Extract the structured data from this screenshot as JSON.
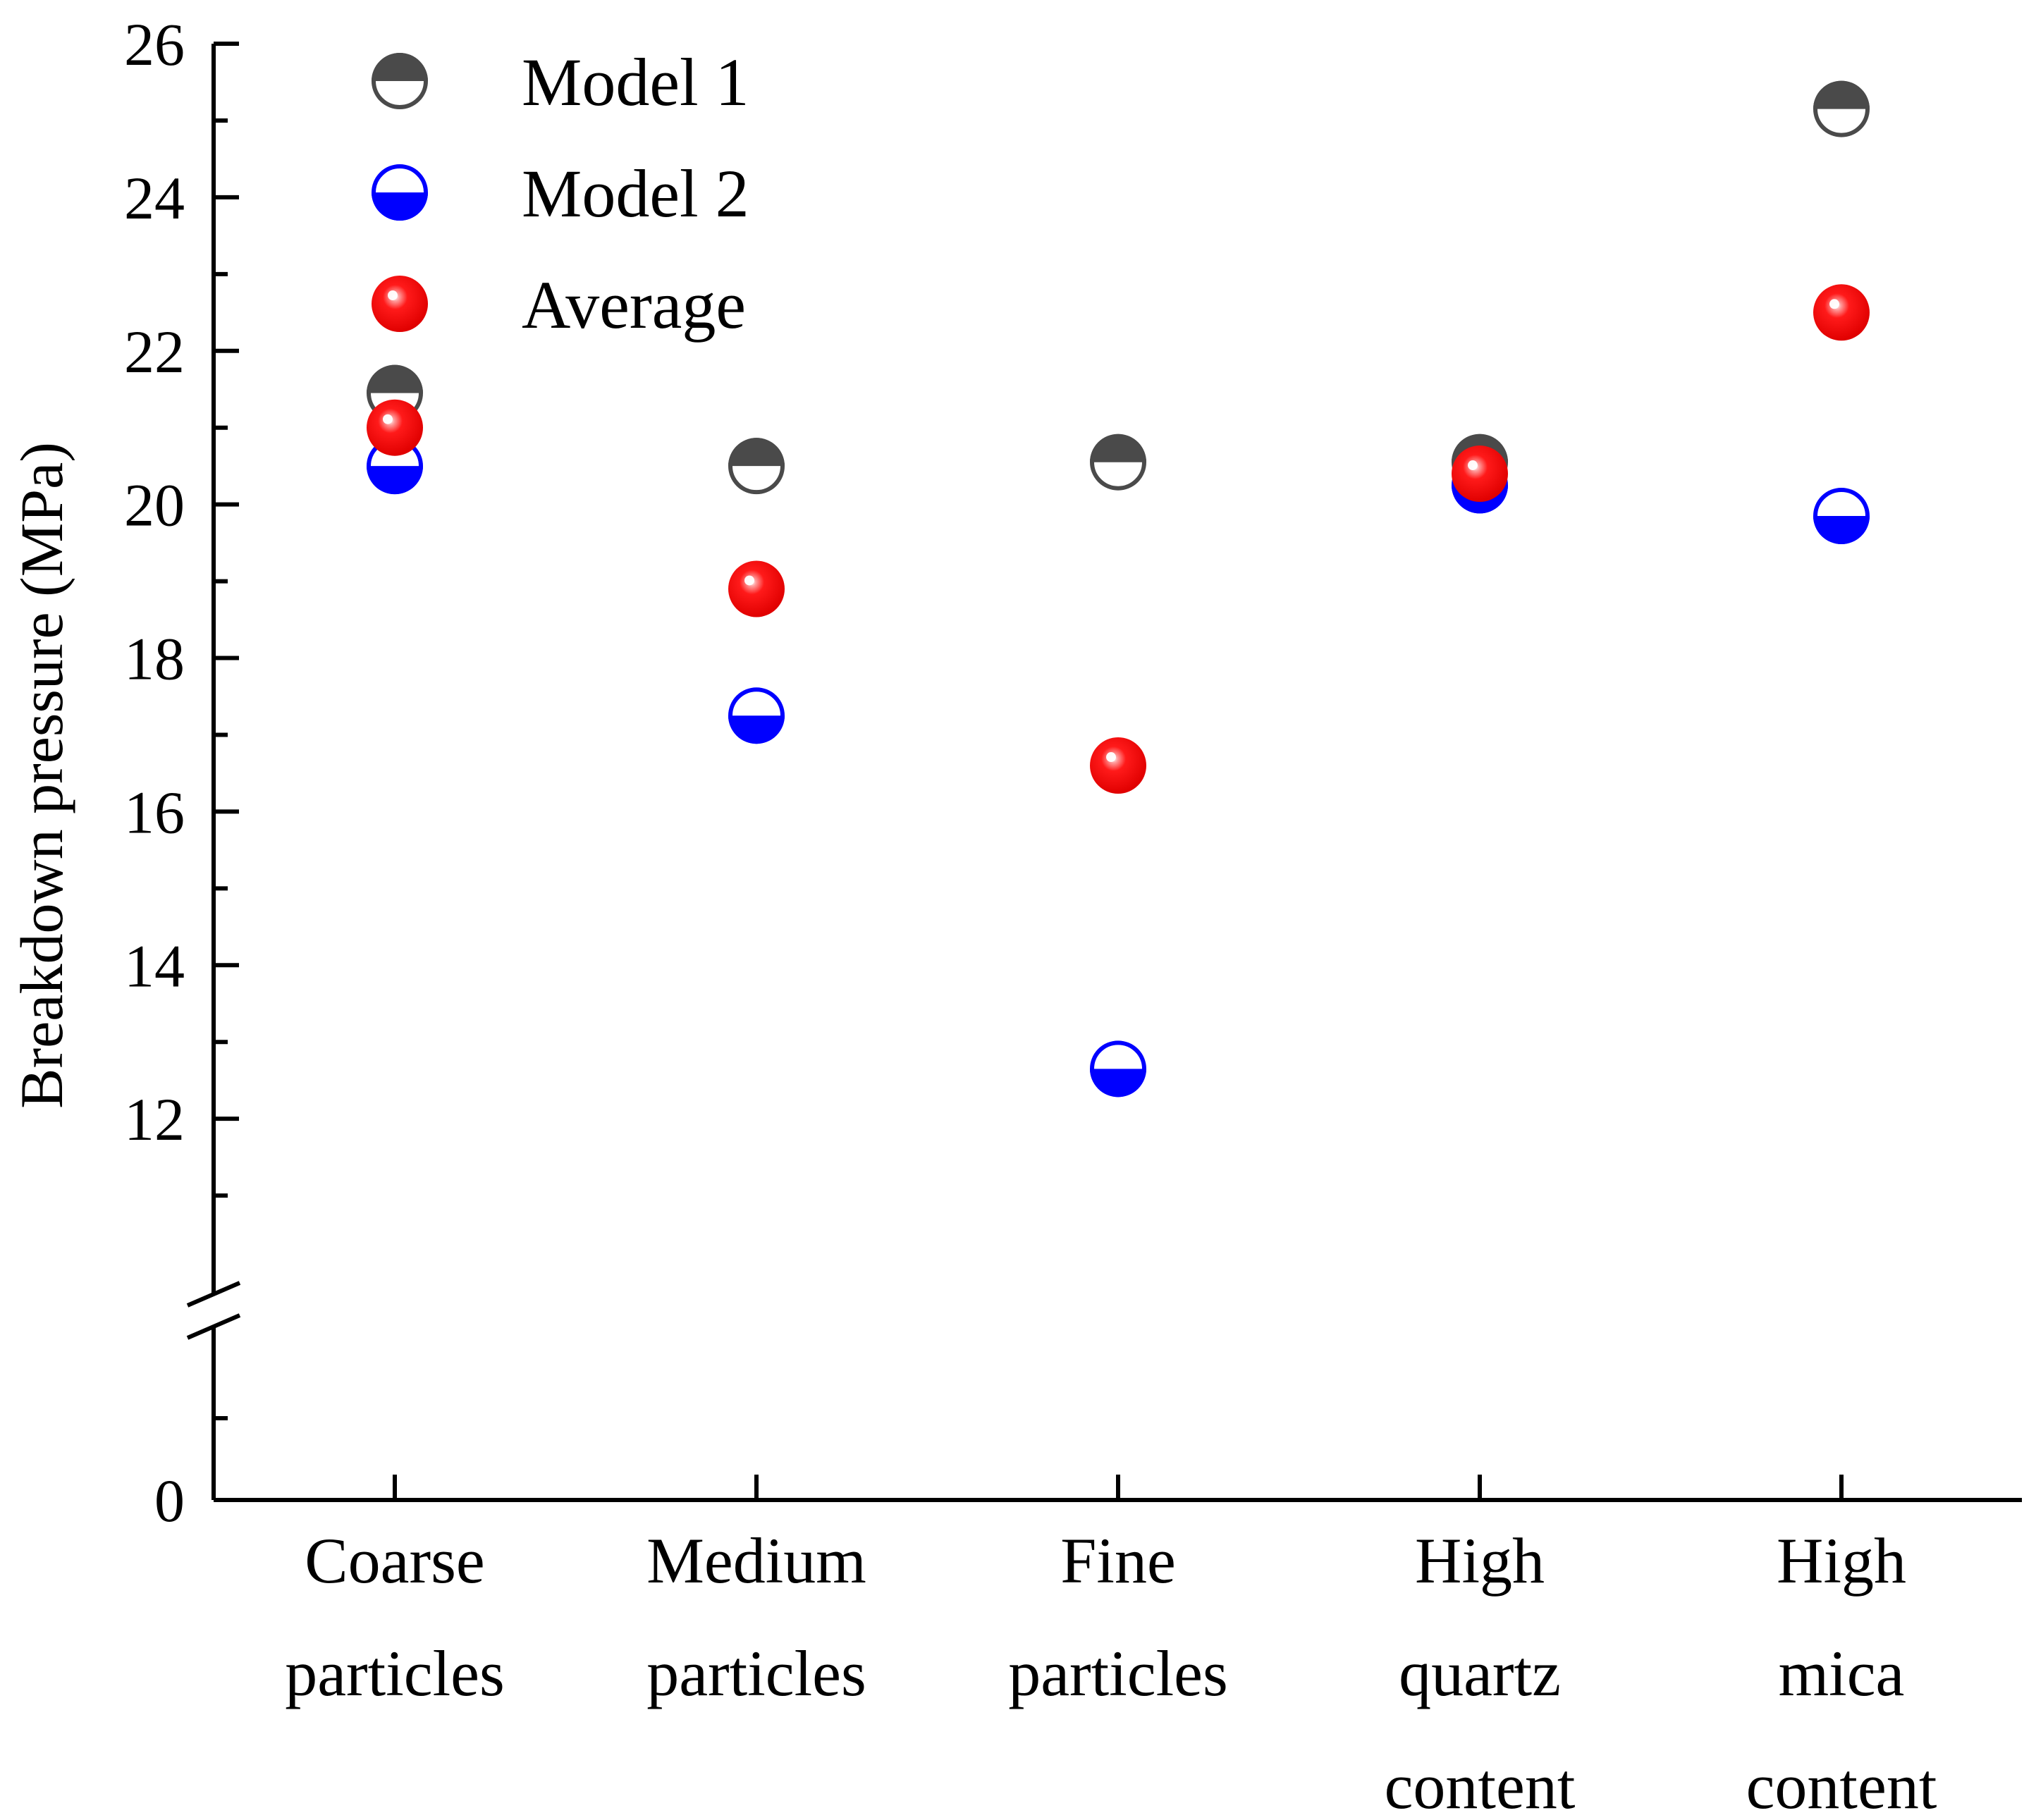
{
  "chart_data": {
    "type": "scatter",
    "title": "",
    "xlabel": "",
    "ylabel": "Breakdown pressure (MPa)",
    "categories": [
      [
        "Coarse",
        "particles"
      ],
      [
        "Medium",
        "particles"
      ],
      [
        "Fine",
        "particles"
      ],
      [
        "High",
        "quartz",
        "content"
      ],
      [
        "High",
        "mica",
        "content"
      ]
    ],
    "series": [
      {
        "name": "Model 1",
        "color": "#4a4a4a",
        "marker": "half-filled-top",
        "values": [
          21.45,
          20.5,
          20.55,
          20.55,
          25.15
        ]
      },
      {
        "name": "Model 2",
        "color": "#0000ff",
        "marker": "half-filled-bottom",
        "values": [
          20.5,
          17.25,
          12.65,
          20.25,
          19.85
        ]
      },
      {
        "name": "Average",
        "color": "#ff0000",
        "marker": "sphere",
        "values": [
          21.0,
          18.9,
          16.6,
          20.4,
          22.5
        ]
      }
    ],
    "ylim": [
      0,
      26
    ],
    "axis_break": [
      1,
      10.5
    ],
    "y_major_ticks": [
      0,
      12,
      14,
      16,
      18,
      20,
      22,
      24,
      26
    ],
    "y_tick_labels": [
      "0",
      "12",
      "14",
      "16",
      "18",
      "20",
      "22",
      "24",
      "26"
    ],
    "y_minor_ticks": [
      1,
      11,
      13,
      15,
      17,
      19,
      21,
      23,
      25
    ],
    "legend_position": "top-left",
    "grid": false
  }
}
